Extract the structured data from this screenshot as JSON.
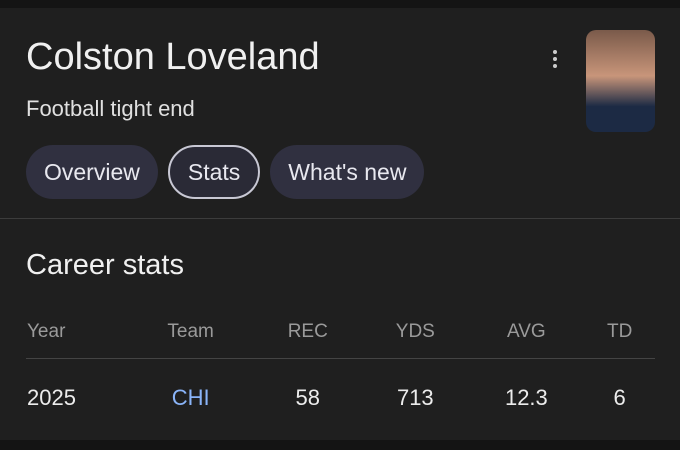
{
  "header": {
    "title": "Colston Loveland",
    "subtitle": "Football tight end"
  },
  "tabs": [
    "Overview",
    "Stats",
    "What's new"
  ],
  "section": {
    "title": "Career stats"
  },
  "table": {
    "columns": [
      "Year",
      "Team",
      "REC",
      "YDS",
      "AVG",
      "TD"
    ],
    "rows": [
      [
        "2025",
        "CHI",
        "58",
        "713",
        "12.3",
        "6"
      ]
    ]
  }
}
